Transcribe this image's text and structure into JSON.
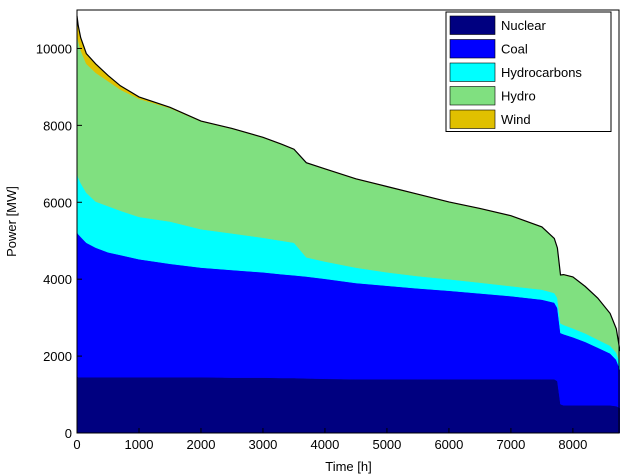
{
  "chart_data": {
    "type": "area",
    "stacked": true,
    "title": "",
    "xlabel": "Time [h]",
    "ylabel": "Power [MW]",
    "xlim": [
      0,
      8760
    ],
    "ylim": [
      0,
      11000
    ],
    "xticks": [
      0,
      1000,
      2000,
      3000,
      4000,
      5000,
      6000,
      7000,
      8000
    ],
    "yticks": [
      0,
      2000,
      4000,
      6000,
      8000,
      10000
    ],
    "grid": false,
    "legend_position": "top-right",
    "x": [
      0,
      20,
      60,
      150,
      300,
      500,
      700,
      1000,
      1500,
      2000,
      2500,
      3000,
      3300,
      3500,
      3700,
      4000,
      4500,
      5000,
      5500,
      6000,
      6500,
      7000,
      7500,
      7700,
      7750,
      7800,
      7850,
      8000,
      8200,
      8400,
      8600,
      8700,
      8760
    ],
    "series": [
      {
        "name": "Nuclear",
        "color": "#000080",
        "values": [
          1480,
          1450,
          1450,
          1450,
          1450,
          1450,
          1450,
          1450,
          1450,
          1450,
          1440,
          1440,
          1430,
          1430,
          1420,
          1410,
          1400,
          1400,
          1400,
          1400,
          1400,
          1400,
          1400,
          1400,
          1350,
          750,
          720,
          720,
          720,
          720,
          720,
          700,
          650
        ]
      },
      {
        "name": "Coal",
        "color": "#0000FF",
        "values": [
          3780,
          3720,
          3650,
          3500,
          3370,
          3250,
          3180,
          3070,
          2950,
          2850,
          2800,
          2740,
          2700,
          2670,
          2650,
          2600,
          2500,
          2430,
          2360,
          2300,
          2230,
          2160,
          2070,
          1990,
          1900,
          1850,
          1850,
          1770,
          1650,
          1500,
          1350,
          1200,
          1000
        ]
      },
      {
        "name": "Hydrocarbons",
        "color": "#00FFFF",
        "values": [
          1540,
          1480,
          1400,
          1300,
          1200,
          1200,
          1150,
          1100,
          1100,
          1000,
          950,
          900,
          870,
          850,
          500,
          450,
          400,
          350,
          320,
          300,
          280,
          260,
          260,
          250,
          260,
          250,
          240,
          230,
          220,
          210,
          200,
          190,
          170
        ]
      },
      {
        "name": "Hydro",
        "color": "#80E080",
        "values": [
          3600,
          3550,
          3450,
          3350,
          3350,
          3250,
          3150,
          3070,
          2950,
          2800,
          2720,
          2600,
          2500,
          2420,
          2450,
          2400,
          2300,
          2220,
          2120,
          2000,
          1920,
          1820,
          1620,
          1410,
          1290,
          1250,
          1300,
          1330,
          1210,
          1070,
          830,
          610,
          300
        ]
      },
      {
        "name": "Wind",
        "color": "#E0C000",
        "values": [
          450,
          400,
          330,
          270,
          230,
          150,
          100,
          50,
          20,
          10,
          10,
          10,
          10,
          10,
          10,
          10,
          10,
          10,
          10,
          10,
          10,
          10,
          10,
          10,
          10,
          10,
          10,
          10,
          10,
          10,
          10,
          10,
          10
        ]
      }
    ]
  }
}
